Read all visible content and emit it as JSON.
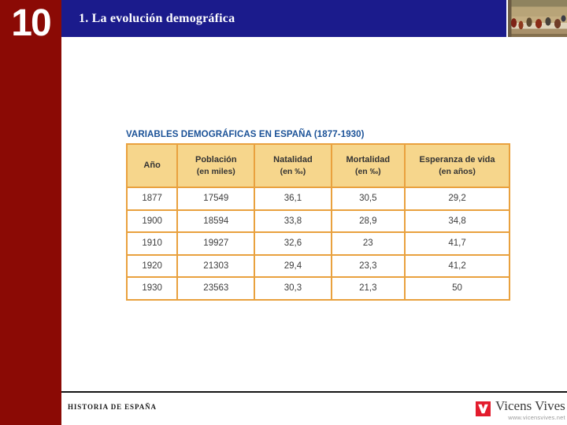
{
  "slide": {
    "unit_number": "10",
    "section_title": "1. La evolución demográfica"
  },
  "table": {
    "caption": "VARIABLES DEMOGRÁFICAS EN ESPAÑA (1877-1930)",
    "columns": [
      {
        "label": "Año",
        "sub": ""
      },
      {
        "label": "Población",
        "sub": "(en miles)"
      },
      {
        "label": "Natalidad",
        "sub": "(en ‰)"
      },
      {
        "label": "Mortalidad",
        "sub": "(en ‰)"
      },
      {
        "label": "Esperanza de vida",
        "sub": "(en años)"
      }
    ],
    "rows": [
      [
        "1877",
        "17549",
        "36,1",
        "30,5",
        "29,2"
      ],
      [
        "1900",
        "18594",
        "33,8",
        "28,9",
        "34,8"
      ],
      [
        "1910",
        "19927",
        "32,6",
        "23",
        "41,7"
      ],
      [
        "1920",
        "21303",
        "29,4",
        "23,3",
        "41,2"
      ],
      [
        "1930",
        "23563",
        "30,3",
        "21,3",
        "50"
      ]
    ]
  },
  "footer": {
    "course_label": "HISTORIA DE ESPAÑA",
    "publisher": "Vicens Vives",
    "publisher_url": "www.vicensvives.net"
  },
  "colors": {
    "sidebar_red": "#8B0A05",
    "header_navy": "#1B1B8C",
    "caption_blue": "#1A5197",
    "table_border": "#E9A13E",
    "table_header_bg": "#F6D68C",
    "logo_red": "#E31C2D"
  }
}
